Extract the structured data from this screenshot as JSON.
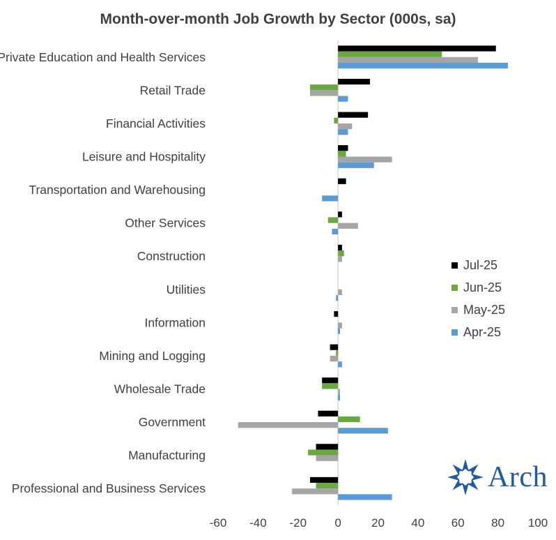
{
  "chart_data": {
    "type": "bar",
    "orientation": "horizontal",
    "title": "Month-over-month Job Growth by Sector (000s, sa)",
    "categories": [
      "Private Education and Health Services",
      "Retail Trade",
      "Financial Activities",
      "Leisure and Hospitality",
      "Transportation and Warehousing",
      "Other Services",
      "Construction",
      "Utilities",
      "Information",
      "Mining and Logging",
      "Wholesale Trade",
      "Government",
      "Manufacturing",
      "Professional and Business Services"
    ],
    "series": [
      {
        "name": "Jul-25",
        "color": "#000000",
        "values": [
          79,
          16,
          15,
          5,
          4,
          2,
          2,
          0,
          -2,
          -4,
          -8,
          -10,
          -11,
          -14
        ]
      },
      {
        "name": "Jun-25",
        "color": "#6aa842",
        "values": [
          52,
          -14,
          -2,
          4,
          0,
          -5,
          3,
          0,
          0,
          -1,
          -8,
          11,
          -15,
          -11
        ]
      },
      {
        "name": "May-25",
        "color": "#a5a5a5",
        "values": [
          70,
          -14,
          7,
          27,
          0,
          10,
          2,
          2,
          2,
          -4,
          1,
          -50,
          -11,
          -23
        ]
      },
      {
        "name": "Apr-25",
        "color": "#5b9bd5",
        "values": [
          85,
          5,
          5,
          18,
          -8,
          -3,
          0,
          -1,
          1,
          2,
          1,
          25,
          0,
          27
        ]
      }
    ],
    "xlim": [
      -60,
      100
    ],
    "xticks": [
      "-60",
      "-40",
      "-20",
      "0",
      "20",
      "40",
      "60",
      "80",
      "100"
    ],
    "xlabel": "",
    "ylabel": "",
    "grid": false,
    "legend_position": "right"
  },
  "logo": {
    "text": "Arch",
    "color": "#1f5aa6"
  }
}
